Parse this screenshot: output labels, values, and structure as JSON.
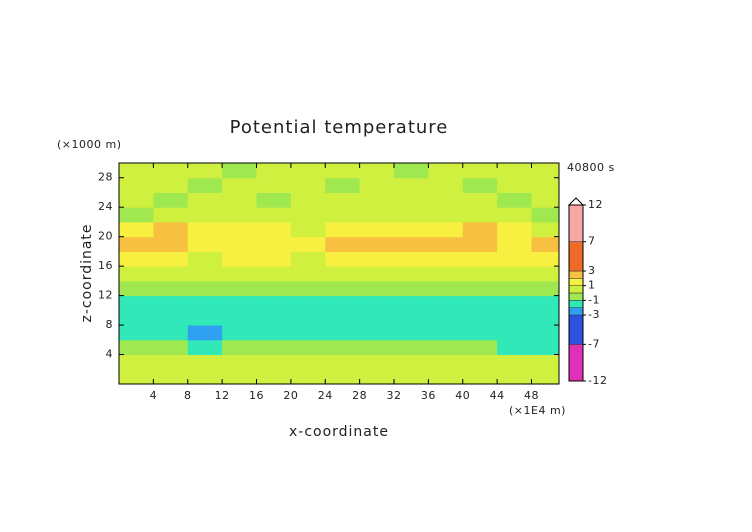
{
  "chart_data": {
    "type": "heatmap",
    "title": "Potential temperature",
    "y_unit": "(×1000 m)",
    "time_label": "40800 s",
    "xlabel": "x-coordinate",
    "ylabel": "z-coordinate",
    "x_unit": "(×1E4 m)",
    "xlim": [
      0,
      51.2
    ],
    "ylim": [
      0,
      30
    ],
    "xticks": [
      4,
      8,
      12,
      16,
      20,
      24,
      28,
      32,
      36,
      40,
      44,
      48
    ],
    "yticks": [
      4,
      8,
      12,
      16,
      20,
      24,
      28
    ],
    "x": [
      2,
      6,
      10,
      14,
      18,
      22,
      26,
      30,
      34,
      38,
      42,
      46,
      50
    ],
    "y": [
      1,
      3,
      5,
      7,
      9,
      11,
      13,
      15,
      17,
      19,
      21,
      23,
      25,
      27,
      29
    ],
    "values": [
      [
        0.4,
        0.3,
        0.6,
        0.2,
        0.5,
        0.3,
        0.6,
        0.4,
        0.3,
        0.5,
        0.2,
        0.4,
        0.3
      ],
      [
        0.6,
        0.5,
        0.8,
        0.5,
        0.6,
        0.4,
        0.5,
        0.7,
        0.5,
        0.6,
        0.4,
        0.5,
        0.6
      ],
      [
        -0.4,
        -0.8,
        -1.2,
        -0.5,
        -0.3,
        -0.4,
        -0.6,
        -0.3,
        -0.4,
        -0.5,
        -0.3,
        -1.3,
        -1.4
      ],
      [
        -1.5,
        -1.7,
        -2.2,
        -1.5,
        -1.4,
        -1.5,
        -1.4,
        -1.5,
        -1.4,
        -1.3,
        -1.5,
        -1.6,
        -1.5
      ],
      [
        -1.5,
        -1.6,
        -1.6,
        -1.5,
        -1.6,
        -1.5,
        -1.5,
        -1.6,
        -1.5,
        -1.5,
        -1.6,
        -1.5,
        -1.5
      ],
      [
        -1.2,
        -1.3,
        -1.2,
        -1.1,
        -1.4,
        -1.3,
        -1.4,
        -1.2,
        -1.3,
        -1.3,
        -1.2,
        -1.3,
        -1.2
      ],
      [
        -0.4,
        -0.3,
        -0.5,
        -0.4,
        -0.3,
        -0.4,
        -0.3,
        -0.5,
        -0.4,
        -0.3,
        -0.4,
        -0.3,
        -0.4
      ],
      [
        0.3,
        0.5,
        0.4,
        0.3,
        0.6,
        0.4,
        0.5,
        0.3,
        0.6,
        0.4,
        0.5,
        0.3,
        0.4
      ],
      [
        1.6,
        1.2,
        0.8,
        1.4,
        1.1,
        0.9,
        1.3,
        1.6,
        1.5,
        1.2,
        1.3,
        1.1,
        1.4
      ],
      [
        2.5,
        2.2,
        1.3,
        1.8,
        1.5,
        1.2,
        2.0,
        2.6,
        2.7,
        2.3,
        2.1,
        1.6,
        2.4
      ],
      [
        1.2,
        2.1,
        1.5,
        1.2,
        1.6,
        0.8,
        1.4,
        1.8,
        1.6,
        1.2,
        2.2,
        1.3,
        0.9
      ],
      [
        -0.3,
        0.8,
        0.6,
        0.9,
        0.7,
        0.5,
        0.8,
        0.6,
        0.5,
        0.7,
        0.6,
        0.8,
        -0.5
      ],
      [
        0.4,
        -0.3,
        0.6,
        0.5,
        -0.3,
        0.7,
        0.6,
        0.5,
        0.4,
        0.6,
        0.5,
        -0.3,
        0.6
      ],
      [
        0.6,
        0.5,
        -0.4,
        0.7,
        0.5,
        0.6,
        -0.3,
        0.6,
        0.5,
        0.6,
        -0.4,
        0.5,
        0.6
      ],
      [
        0.5,
        0.6,
        0.5,
        -0.3,
        0.6,
        0.5,
        0.6,
        0.5,
        -0.3,
        0.6,
        0.5,
        0.6,
        0.5
      ]
    ],
    "colorbar": {
      "lim": [
        -12,
        12
      ],
      "ticks": [
        12,
        7,
        3,
        1,
        -1,
        -3,
        -7,
        -12
      ],
      "bounds": [
        -12,
        -7,
        -3,
        -2,
        -1,
        0,
        1,
        2,
        3,
        7,
        12
      ],
      "colors": [
        "#e030b8",
        "#3050e0",
        "#30a0f0",
        "#30e8b8",
        "#a0e850",
        "#d0f040",
        "#f8f040",
        "#f8c040",
        "#f06a28",
        "#f8a8a8"
      ]
    }
  }
}
